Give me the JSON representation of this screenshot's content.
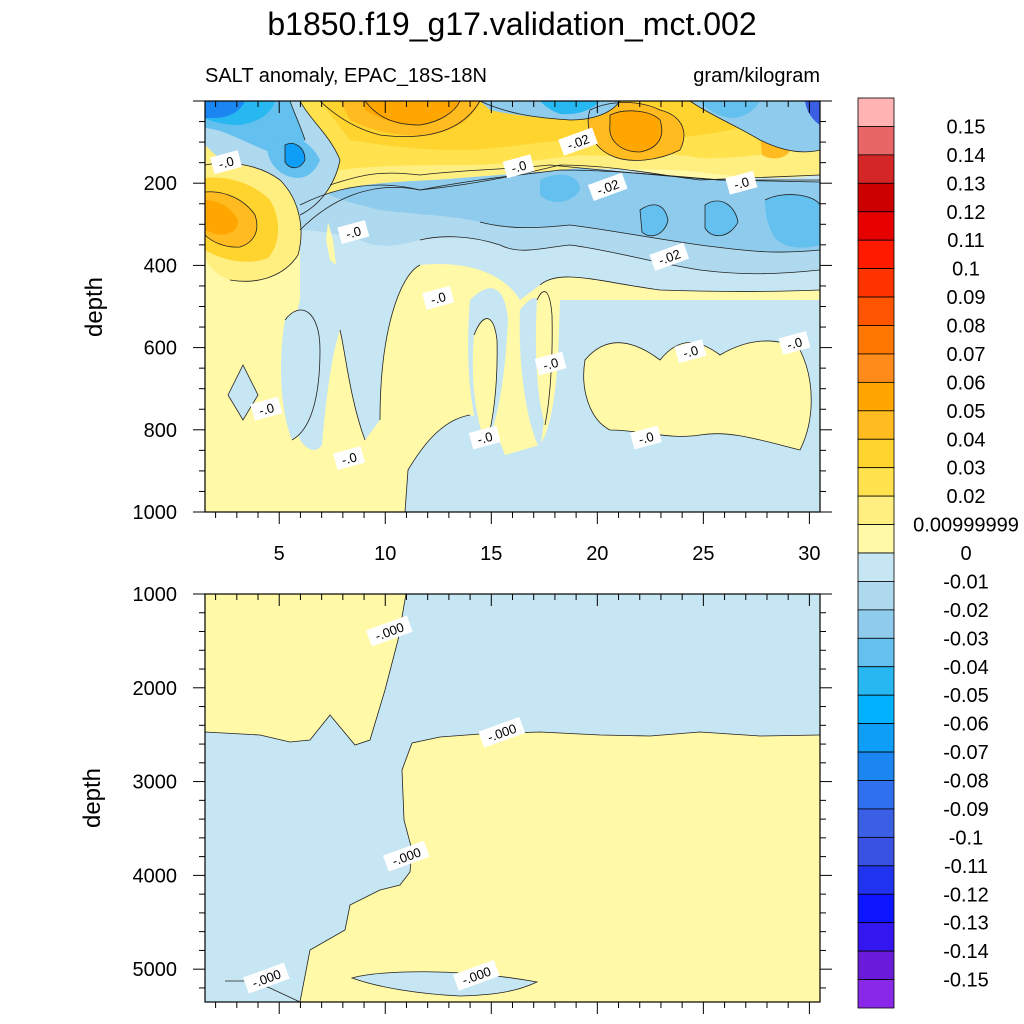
{
  "chart_data": {
    "type": "contour",
    "title": "b1850.f19_g17.validation_mct.002",
    "subtitle_left": "SALT anomaly, EPAC_18S-18N",
    "subtitle_right": "gram/kilogram",
    "xlabel": "",
    "ylabel": "depth",
    "xlim": [
      1.5,
      30.5
    ],
    "x_ticks": [
      5,
      10,
      15,
      20,
      25,
      30
    ],
    "x_tick_labels": [
      "5",
      "10",
      "15",
      "20",
      "25",
      "30"
    ],
    "panels": [
      {
        "name": "upper",
        "ylim": [
          0,
          1000
        ],
        "y_ticks": [
          200,
          400,
          600,
          800,
          1000
        ],
        "y_tick_labels": [
          "200",
          "400",
          "600",
          "800",
          "1000"
        ],
        "contour_labels": [
          {
            "text": "-.0",
            "x": 2.5,
            "y": 150
          },
          {
            "text": "-.0",
            "x": 8.5,
            "y": 320
          },
          {
            "text": "-.0",
            "x": 12.5,
            "y": 480
          },
          {
            "text": "-.0",
            "x": 16.3,
            "y": 160
          },
          {
            "text": "-.02",
            "x": 19.1,
            "y": 100
          },
          {
            "text": "-.02",
            "x": 20.5,
            "y": 210
          },
          {
            "text": "-.0",
            "x": 26.8,
            "y": 200
          },
          {
            "text": "-.02",
            "x": 23.4,
            "y": 380
          },
          {
            "text": "-.0",
            "x": 24.4,
            "y": 610
          },
          {
            "text": "-.0",
            "x": 29.3,
            "y": 590
          },
          {
            "text": "-.0",
            "x": 17.8,
            "y": 640
          },
          {
            "text": "-.0",
            "x": 4.4,
            "y": 750
          },
          {
            "text": "-.0",
            "x": 14.7,
            "y": 820
          },
          {
            "text": "-.0",
            "x": 22.3,
            "y": 820
          },
          {
            "text": "-.0",
            "x": 8.3,
            "y": 870
          }
        ]
      },
      {
        "name": "lower",
        "ylim": [
          1000,
          5350
        ],
        "y_ticks": [
          1000,
          2000,
          3000,
          4000,
          5000
        ],
        "y_tick_labels": [
          "1000",
          "2000",
          "3000",
          "4000",
          "5000"
        ],
        "contour_labels": [
          {
            "text": "-.000",
            "x": 10.2,
            "y": 1400
          },
          {
            "text": "-.000",
            "x": 15.5,
            "y": 2480
          },
          {
            "text": "-.000",
            "x": 11.0,
            "y": 3800
          },
          {
            "text": "-.000",
            "x": 4.4,
            "y": 5100
          },
          {
            "text": "-.000",
            "x": 14.3,
            "y": 5070
          }
        ]
      }
    ],
    "colorbar": {
      "levels": [
        "0.15",
        "0.14",
        "0.13",
        "0.12",
        "0.11",
        "0.1",
        "0.09",
        "0.08",
        "0.07",
        "0.06",
        "0.05",
        "0.04",
        "0.03",
        "0.02",
        "0.00999999",
        "0",
        "-0.01",
        "-0.02",
        "-0.03",
        "-0.04",
        "-0.05",
        "-0.06",
        "-0.07",
        "-0.08",
        "-0.09",
        "-0.1",
        "-0.11",
        "-0.12",
        "-0.13",
        "-0.14",
        "-0.15"
      ],
      "colors": [
        "#ffb3b3",
        "#e86666",
        "#d42626",
        "#cc0000",
        "#e60000",
        "#ff1a00",
        "#ff3300",
        "#ff5500",
        "#ff7700",
        "#ff8c1a",
        "#ffa600",
        "#ffbb1f",
        "#ffd42e",
        "#ffe24d",
        "#ffee80",
        "#fff9a8",
        "#c6e6f3",
        "#aed9ef",
        "#8ecbec",
        "#63c0ef",
        "#27b8f1",
        "#00b2ff",
        "#0e9df7",
        "#1b86f2",
        "#2e70ef",
        "#3a5ee4",
        "#3a52e4",
        "#2033ee",
        "#0d14ff",
        "#3416f0",
        "#6a1ad9",
        "#8a28ea"
      ]
    }
  }
}
